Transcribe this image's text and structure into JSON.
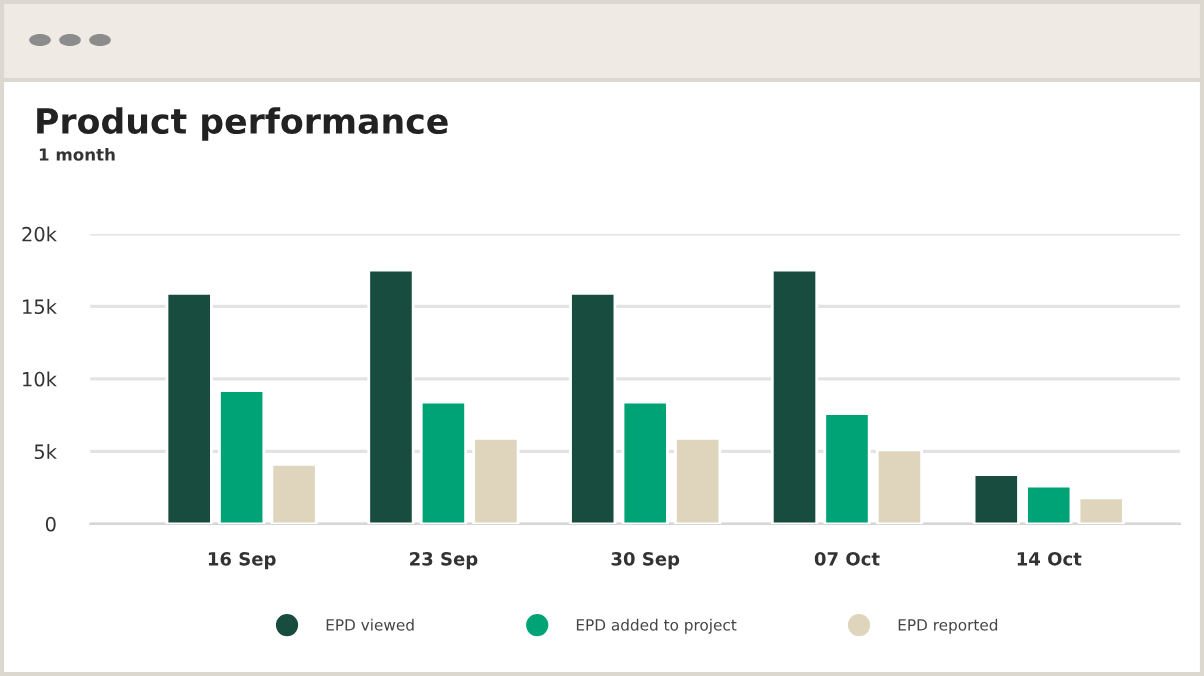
{
  "chart_data": {
    "type": "bar",
    "title": "Product performance",
    "subtitle": "1 month",
    "categories": [
      "16 Sep",
      "23 Sep",
      "30 Sep",
      "07 Oct",
      "14 Oct"
    ],
    "series": [
      {
        "name": "EPD viewed",
        "color": "#174c3f",
        "values": [
          15900,
          17500,
          15900,
          17500,
          3400
        ]
      },
      {
        "name": "EPD added to project",
        "color": "#00a375",
        "values": [
          9200,
          8400,
          8400,
          7600,
          2600
        ]
      },
      {
        "name": "EPD reported",
        "color": "#dfd5bd",
        "values": [
          4100,
          5900,
          5900,
          5100,
          1800
        ]
      }
    ],
    "ylim": [
      0,
      20000
    ],
    "yticks": [
      {
        "value": 0,
        "label": "0"
      },
      {
        "value": 5000,
        "label": "5k"
      },
      {
        "value": 10000,
        "label": "10k"
      },
      {
        "value": 15000,
        "label": "15k"
      },
      {
        "value": 20000,
        "label": "20k"
      }
    ],
    "grid": "y",
    "legend": "bottom",
    "marker": "circle"
  }
}
